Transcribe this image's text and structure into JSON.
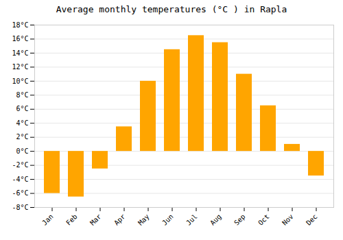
{
  "chart_data": {
    "type": "bar",
    "title": "Average monthly temperatures (°C ) in Rapla",
    "categories": [
      "Jan",
      "Feb",
      "Mar",
      "Apr",
      "May",
      "Jun",
      "Jul",
      "Aug",
      "Sep",
      "Oct",
      "Nov",
      "Dec"
    ],
    "values": [
      -6,
      -6.5,
      -2.5,
      3.5,
      10,
      14.5,
      16.5,
      15.5,
      11,
      6.5,
      1,
      -3.5
    ],
    "color": "#FFA500",
    "ylim": [
      -8,
      18
    ],
    "yticks": [
      {
        "value": -8,
        "label": "-8°C"
      },
      {
        "value": -6,
        "label": "-6°C"
      },
      {
        "value": -4,
        "label": "-4°C"
      },
      {
        "value": -2,
        "label": "-2°C"
      },
      {
        "value": 0,
        "label": "0°C"
      },
      {
        "value": 2,
        "label": "2°C"
      },
      {
        "value": 4,
        "label": "4°C"
      },
      {
        "value": 6,
        "label": "6°C"
      },
      {
        "value": 8,
        "label": "8°C"
      },
      {
        "value": 10,
        "label": "10°C"
      },
      {
        "value": 12,
        "label": "12°C"
      },
      {
        "value": 14,
        "label": "14°C"
      },
      {
        "value": 16,
        "label": "16°C"
      },
      {
        "value": 18,
        "label": "18°C"
      }
    ],
    "grid": true
  }
}
